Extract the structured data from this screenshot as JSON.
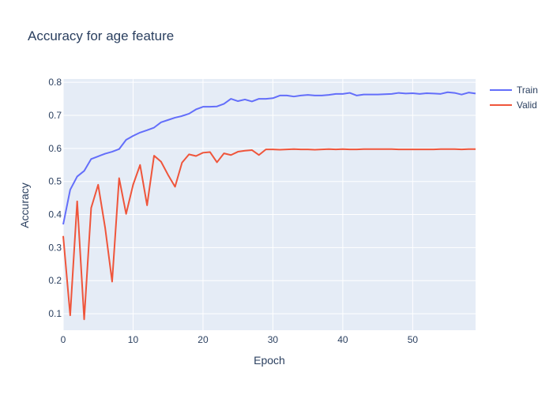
{
  "chart_data": {
    "type": "line",
    "title": "Accuracy for age feature",
    "xlabel": "Epoch",
    "ylabel": "Accuracy",
    "xlim": [
      0,
      59
    ],
    "ylim": [
      0.05,
      0.81
    ],
    "x_ticks": [
      0,
      10,
      20,
      30,
      40,
      50
    ],
    "y_ticks": [
      0.1,
      0.2,
      0.3,
      0.4,
      0.5,
      0.6,
      0.7,
      0.8
    ],
    "grid": true,
    "legend_position": "top-right",
    "plot_background": "#e5ecf6",
    "x": [
      0,
      1,
      2,
      3,
      4,
      5,
      6,
      7,
      8,
      9,
      10,
      11,
      12,
      13,
      14,
      15,
      16,
      17,
      18,
      19,
      20,
      21,
      22,
      23,
      24,
      25,
      26,
      27,
      28,
      29,
      30,
      31,
      32,
      33,
      34,
      35,
      36,
      37,
      38,
      39,
      40,
      41,
      42,
      43,
      44,
      45,
      46,
      47,
      48,
      49,
      50,
      51,
      52,
      53,
      54,
      55,
      56,
      57,
      58,
      59
    ],
    "series": [
      {
        "name": "Train",
        "color": "#636efa",
        "values": [
          0.37,
          0.475,
          0.515,
          0.532,
          0.568,
          0.576,
          0.584,
          0.59,
          0.598,
          0.626,
          0.638,
          0.648,
          0.655,
          0.663,
          0.679,
          0.686,
          0.693,
          0.698,
          0.705,
          0.718,
          0.726,
          0.726,
          0.727,
          0.735,
          0.75,
          0.743,
          0.748,
          0.742,
          0.75,
          0.75,
          0.752,
          0.76,
          0.76,
          0.757,
          0.76,
          0.762,
          0.76,
          0.76,
          0.762,
          0.765,
          0.765,
          0.768,
          0.76,
          0.763,
          0.763,
          0.763,
          0.764,
          0.765,
          0.768,
          0.766,
          0.767,
          0.765,
          0.767,
          0.766,
          0.765,
          0.77,
          0.768,
          0.763,
          0.769,
          0.766
        ]
      },
      {
        "name": "Valid",
        "color": "#ef553b",
        "values": [
          0.335,
          0.095,
          0.44,
          0.083,
          0.42,
          0.49,
          0.36,
          0.197,
          0.51,
          0.402,
          0.49,
          0.55,
          0.428,
          0.578,
          0.56,
          0.52,
          0.484,
          0.557,
          0.582,
          0.577,
          0.587,
          0.589,
          0.558,
          0.585,
          0.58,
          0.59,
          0.593,
          0.595,
          0.58,
          0.597,
          0.597,
          0.596,
          0.597,
          0.598,
          0.597,
          0.597,
          0.596,
          0.597,
          0.598,
          0.597,
          0.598,
          0.597,
          0.597,
          0.598,
          0.598,
          0.598,
          0.598,
          0.598,
          0.597,
          0.597,
          0.597,
          0.597,
          0.597,
          0.597,
          0.598,
          0.598,
          0.598,
          0.597,
          0.598,
          0.598
        ]
      }
    ]
  }
}
